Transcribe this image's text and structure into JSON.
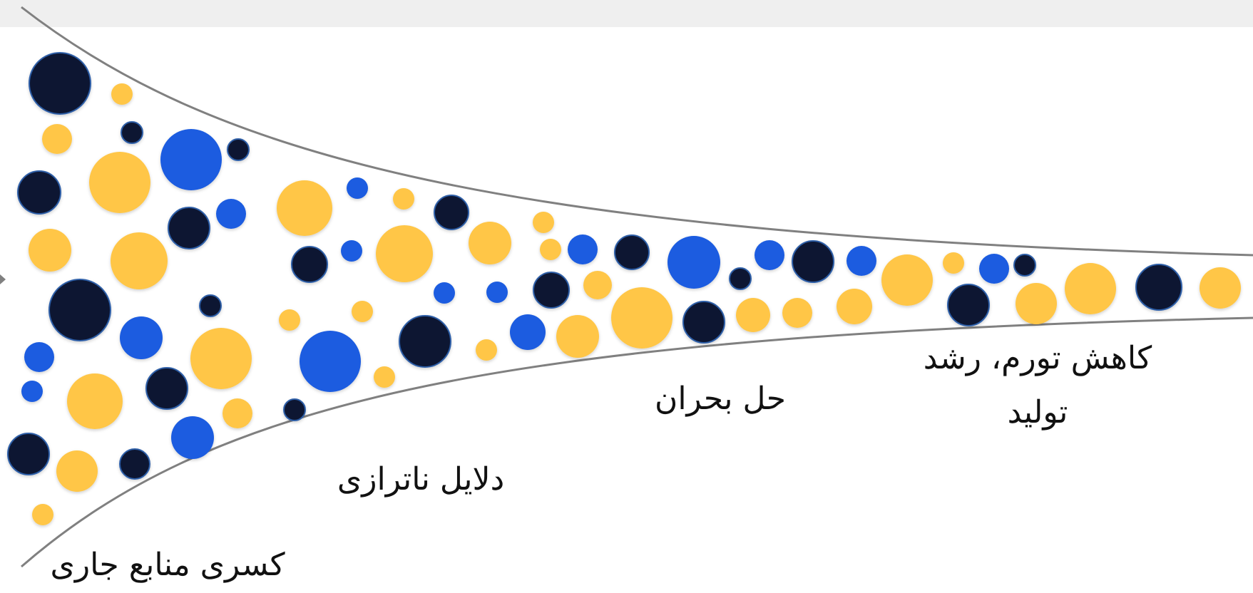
{
  "diagram": {
    "stages": [
      {
        "id": "stage-1",
        "label": "کسری منابع جاری"
      },
      {
        "id": "stage-2",
        "label": "دلایل ناترازی"
      },
      {
        "id": "stage-3",
        "label": "حل بحران"
      },
      {
        "id": "stage-4",
        "label": "کاهش تورم، رشد تولید"
      }
    ],
    "colors": {
      "navy": "#0b1733",
      "blue": "#1a5ce0",
      "yellow": "#ffc646",
      "curve": "#808080",
      "band": "#efefef"
    }
  }
}
